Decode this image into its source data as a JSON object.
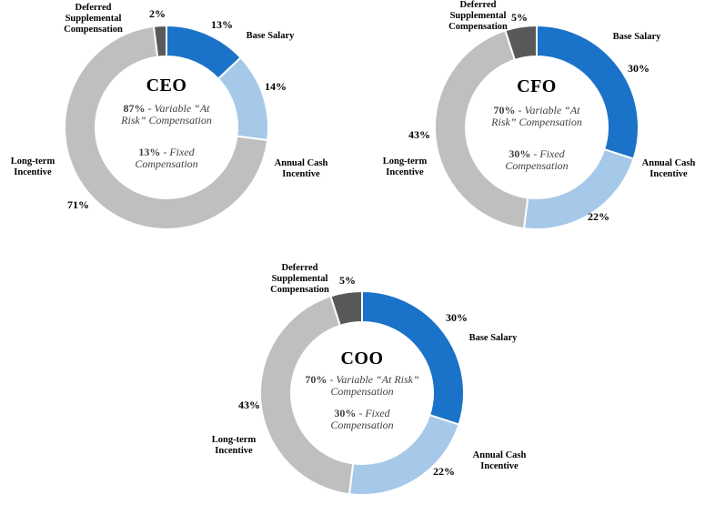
{
  "colors": {
    "base_salary": "#1A73C8",
    "annual_cash_incentive": "#A6C8E9",
    "long_term_incentive": "#BFBFBF",
    "deferred_supplemental_compensation": "#595959",
    "background": "#FFFFFF",
    "text": "#000000"
  },
  "chart_data": [
    {
      "type": "donut",
      "title": "CEO",
      "start_angle_deg": 0,
      "direction": "clockwise",
      "segments": [
        {
          "label": "Base Salary",
          "pct": "13%",
          "value": 13,
          "color_key": "base_salary"
        },
        {
          "label": "Annual Cash Incentive",
          "pct": "14%",
          "value": 14,
          "color_key": "annual_cash_incentive"
        },
        {
          "label": "Long-term Incentive",
          "pct": "71%",
          "value": 71,
          "color_key": "long_term_incentive"
        },
        {
          "label": "Deferred Supplemental Compensation",
          "pct": "2%",
          "value": 2,
          "color_key": "deferred_supplemental_compensation"
        }
      ],
      "center": {
        "variable_pct": "87%",
        "variable_text": "- Variable “At Risk” Compensation",
        "fixed_pct": "13%",
        "fixed_text": "- Fixed Compensation"
      }
    },
    {
      "type": "donut",
      "title": "CFO",
      "start_angle_deg": 0,
      "direction": "clockwise",
      "segments": [
        {
          "label": "Base Salary",
          "pct": "30%",
          "value": 30,
          "color_key": "base_salary"
        },
        {
          "label": "Annual Cash Incentive",
          "pct": "22%",
          "value": 22,
          "color_key": "annual_cash_incentive"
        },
        {
          "label": "Long-term Incentive",
          "pct": "43%",
          "value": 43,
          "color_key": "long_term_incentive"
        },
        {
          "label": "Deferred Supplemental Compensation",
          "pct": "5%",
          "value": 5,
          "color_key": "deferred_supplemental_compensation"
        }
      ],
      "center": {
        "variable_pct": "70%",
        "variable_text": "- Variable “At Risk” Compensation",
        "fixed_pct": "30%",
        "fixed_text": "- Fixed Compensation"
      }
    },
    {
      "type": "donut",
      "title": "COO",
      "start_angle_deg": 0,
      "direction": "clockwise",
      "segments": [
        {
          "label": "Base Salary",
          "pct": "30%",
          "value": 30,
          "color_key": "base_salary"
        },
        {
          "label": "Annual Cash Incentive",
          "pct": "22%",
          "value": 22,
          "color_key": "annual_cash_incentive"
        },
        {
          "label": "Long-term Incentive",
          "pct": "43%",
          "value": 43,
          "color_key": "long_term_incentive"
        },
        {
          "label": "Deferred Supplemental Compensation",
          "pct": "5%",
          "value": 5,
          "color_key": "deferred_supplemental_compensation"
        }
      ],
      "center": {
        "variable_pct": "70%",
        "variable_text": "- Variable “At Risk” Compensation",
        "fixed_pct": "30%",
        "fixed_text": "- Fixed Compensation"
      }
    }
  ]
}
